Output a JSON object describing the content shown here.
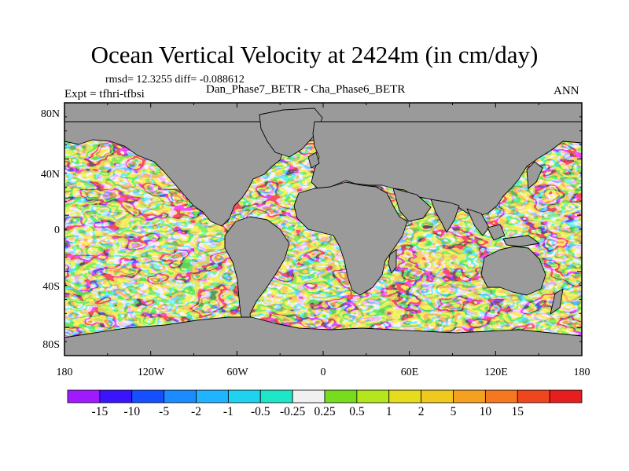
{
  "title": "Ocean Vertical Velocity at 2424m (in cm/day)",
  "stats": "rmsd= 12.3255 diff= -0.088612",
  "expt": "Expt = tfhri-tfbsi",
  "case": "Dan_Phase7_BETR - Cha_Phase6_BETR",
  "season": "ANN",
  "lat_ticks": [
    "80N",
    "40N",
    "0",
    "40S",
    "80S"
  ],
  "lon_ticks": [
    "180",
    "120W",
    "60W",
    "0",
    "60E",
    "120E",
    "180"
  ],
  "colorbar": {
    "colors": [
      "#a01aff",
      "#3a14ff",
      "#1450ff",
      "#1a8cff",
      "#1eb4ff",
      "#1ed2f0",
      "#1ee6c8",
      "#f0f0f0",
      "#78dc1e",
      "#b4e61e",
      "#e6dc1e",
      "#f0c81e",
      "#f5a01e",
      "#f5781e",
      "#f0461e",
      "#e61e1e"
    ],
    "labels": [
      "-15",
      "-10",
      "-5",
      "-2",
      "-1",
      "-0.5",
      "-0.25",
      "0.25",
      "0.5",
      "1",
      "2",
      "5",
      "10",
      "15"
    ]
  },
  "colors": {
    "land": "#9a9a9a",
    "coast": "#000000"
  }
}
